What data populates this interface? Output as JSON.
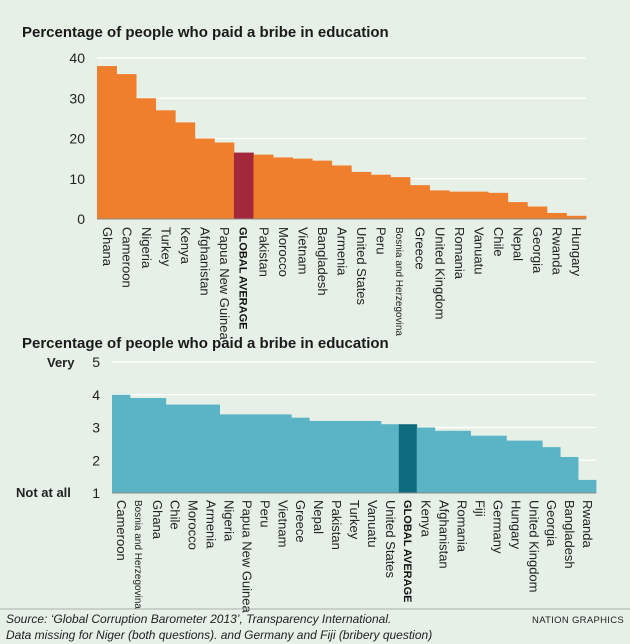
{
  "colors": {
    "background": "#e6f0e7",
    "orange": "#f07f2d",
    "orange_highlight": "#a3283b",
    "teal": "#5ab4c6",
    "teal_highlight": "#0f6b7e"
  },
  "footer": {
    "source_line1": "Source: ‘Global Corruption Barometer 2013’, Transparency International.",
    "source_line2": "Data missing for Niger (both questions). and Germany and Fiji (bribery question)",
    "brand": "NATION GRAPHICS"
  },
  "chart_data": [
    {
      "type": "bar",
      "title": "Percentage of people who paid a bribe in education",
      "ylim": [
        0,
        40
      ],
      "yticks": [
        "0",
        "10",
        "20",
        "30",
        "40"
      ],
      "grid": true,
      "highlight": "GLOBAL AVERAGE",
      "categories": [
        "Ghana",
        "Cameroon",
        "Nigeria",
        "Turkey",
        "Kenya",
        "Afghanistan",
        "Papua New Guinea",
        "GLOBAL AVERAGE",
        "Pakistan",
        "Morocco",
        "Vietnam",
        "Bangladesh",
        "Armenia",
        "United States",
        "Peru",
        "Bosnia and Herzegovina",
        "Greece",
        "United Kingdom",
        "Romania",
        "Vanuatu",
        "Chile",
        "Nepal",
        "Georgia",
        "Rwanda",
        "Hungary"
      ],
      "values": [
        38,
        36,
        30,
        27,
        24,
        20,
        19,
        16.5,
        16,
        15.3,
        15,
        14.5,
        13.3,
        11.7,
        11,
        10.4,
        8.4,
        7.1,
        6.8,
        6.8,
        6.5,
        4.2,
        3.1,
        1.5,
        0.8
      ]
    },
    {
      "type": "bar",
      "title": "Percentage of people who paid a bribe in education",
      "ylim": [
        1,
        5
      ],
      "yticks": [
        "1",
        "2",
        "3",
        "4",
        "5"
      ],
      "ytick_words": {
        "top": "Very",
        "bottom": "Not at all"
      },
      "grid": true,
      "highlight": "GLOBAL AVERAGE",
      "categories": [
        "Cameroon",
        "Bosnia and Herzegovina",
        "Ghana",
        "Chile",
        "Morocco",
        "Armenia",
        "Nigeria",
        "Papua New Guinea",
        "Peru",
        "Vietnam",
        "Greece",
        "Nepal",
        "Pakistan",
        "Turkey",
        "Vanuatu",
        "United States",
        "GLOBAL AVERAGE",
        "Kenya",
        "Afghanistan",
        "Romania",
        "Fiji",
        "Germany",
        "Hungary",
        "United Kingdom",
        "Georgia",
        "Bangladesh",
        "Rwanda"
      ],
      "values": [
        4.0,
        3.9,
        3.9,
        3.7,
        3.7,
        3.7,
        3.4,
        3.4,
        3.4,
        3.4,
        3.3,
        3.2,
        3.2,
        3.2,
        3.2,
        3.1,
        3.1,
        3.0,
        2.9,
        2.9,
        2.75,
        2.75,
        2.6,
        2.6,
        2.4,
        2.1,
        1.4
      ]
    }
  ]
}
